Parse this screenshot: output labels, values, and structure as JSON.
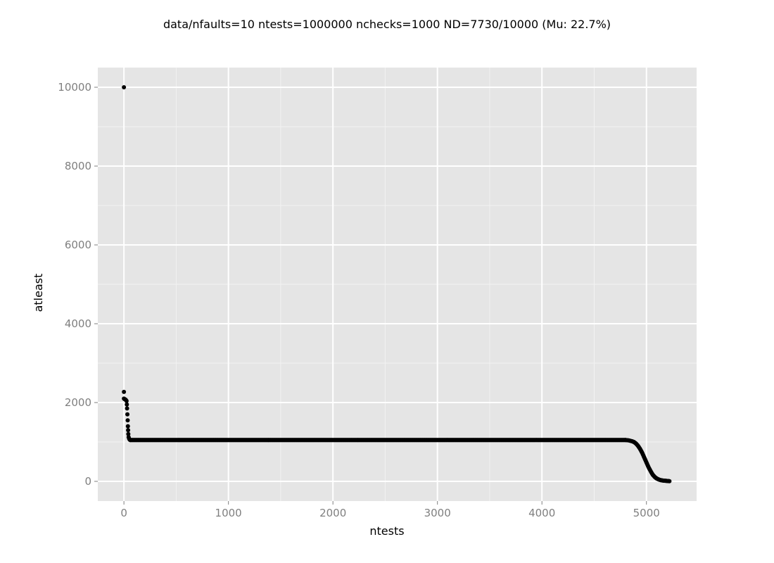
{
  "chart_data": {
    "type": "scatter",
    "title": "data/nfaults=10 ntests=1000000 nchecks=1000  ND=7730/10000 (Mu: 22.7%)",
    "xlabel": "ntests",
    "ylabel": "atleast",
    "xlim": [
      -250,
      5480
    ],
    "ylim": [
      -500,
      10500
    ],
    "x_ticks": [
      0,
      1000,
      2000,
      3000,
      4000,
      5000
    ],
    "y_ticks": [
      0,
      2000,
      4000,
      6000,
      8000,
      10000
    ],
    "x_tick_labels": [
      "0",
      "1000",
      "2000",
      "3000",
      "4000",
      "5000"
    ],
    "y_tick_labels": [
      "0",
      "2000",
      "4000",
      "6000",
      "8000",
      "10000"
    ],
    "grid": true,
    "colors": {
      "panel": "#e5e5e5",
      "grid_major": "#ffffff",
      "grid_minor": "#f2f2f2",
      "point": "#000000"
    },
    "series": [
      {
        "points": [
          [
            0,
            10000
          ],
          [
            0,
            2270
          ],
          [
            0,
            2100
          ],
          [
            5,
            2090
          ],
          [
            10,
            2080
          ],
          [
            15,
            2075
          ],
          [
            20,
            2060
          ],
          [
            25,
            2040
          ],
          [
            28,
            1950
          ],
          [
            30,
            1850
          ],
          [
            33,
            1700
          ],
          [
            36,
            1550
          ],
          [
            38,
            1400
          ],
          [
            40,
            1300
          ],
          [
            42,
            1200
          ],
          [
            45,
            1120
          ],
          [
            50,
            1080
          ],
          [
            55,
            1060
          ],
          [
            60,
            1050
          ]
        ],
        "plateau": {
          "x_start": 60,
          "x_end": 4800,
          "value": 1050
        },
        "tail": [
          [
            4800,
            1050
          ],
          [
            4830,
            1040
          ],
          [
            4860,
            1020
          ],
          [
            4880,
            1000
          ],
          [
            4900,
            960
          ],
          [
            4920,
            900
          ],
          [
            4940,
            820
          ],
          [
            4960,
            720
          ],
          [
            4980,
            600
          ],
          [
            5000,
            480
          ],
          [
            5020,
            360
          ],
          [
            5040,
            260
          ],
          [
            5060,
            170
          ],
          [
            5080,
            110
          ],
          [
            5100,
            70
          ],
          [
            5120,
            45
          ],
          [
            5140,
            30
          ],
          [
            5160,
            20
          ],
          [
            5180,
            15
          ],
          [
            5200,
            10
          ],
          [
            5220,
            5
          ]
        ]
      }
    ]
  }
}
